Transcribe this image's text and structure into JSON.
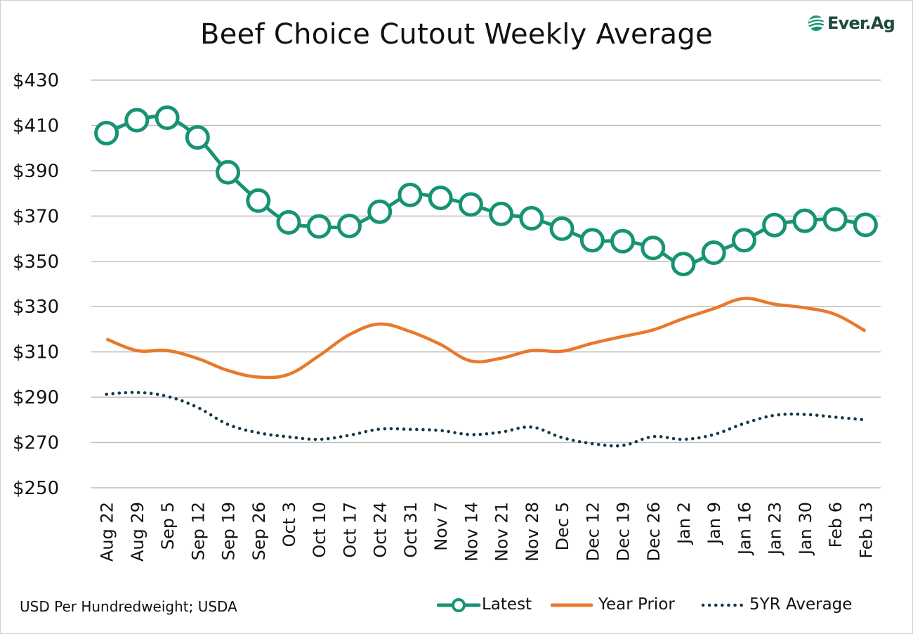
{
  "brand": {
    "logo_text": "Ever.Ag"
  },
  "source_note": "USD Per Hundredweight; USDA",
  "colors": {
    "latest": "#179373",
    "year_prior": "#e8792c",
    "five_yr": "#163748",
    "grid": "#bfbfbf"
  },
  "chart_data": {
    "type": "line",
    "title": "Beef Choice Cutout Weekly Average",
    "xlabel": "",
    "ylabel": "",
    "ylim": [
      250,
      430
    ],
    "ytick_step": 20,
    "ytick_labels": [
      "$250",
      "$270",
      "$290",
      "$310",
      "$330",
      "$350",
      "$370",
      "$390",
      "$410",
      "$430"
    ],
    "categories": [
      "Aug 22",
      "Aug 29",
      "Sep 5",
      "Sep 12",
      "Sep 19",
      "Sep 26",
      "Oct 3",
      "Oct 10",
      "Oct 17",
      "Oct 24",
      "Oct 31",
      "Nov 7",
      "Nov 14",
      "Nov 21",
      "Nov 28",
      "Dec 5",
      "Dec 12",
      "Dec 19",
      "Dec 26",
      "Jan 2",
      "Jan 9",
      "Jan 16",
      "Jan 23",
      "Jan 30",
      "Feb 6",
      "Feb 13"
    ],
    "grid": true,
    "legend_position": "bottom",
    "series": [
      {
        "name": "Latest",
        "style": "line-markers",
        "values": [
          406.6,
          412.3,
          413.4,
          404.7,
          389.3,
          376.8,
          367.2,
          365.4,
          365.6,
          371.9,
          379.3,
          378.0,
          375.1,
          370.9,
          369.0,
          364.4,
          359.3,
          358.9,
          355.9,
          348.8,
          353.8,
          359.3,
          366.0,
          367.9,
          368.5,
          366.1
        ]
      },
      {
        "name": "Year Prior",
        "style": "solid",
        "values": [
          315.7,
          310.6,
          310.6,
          307.1,
          301.8,
          298.9,
          300.1,
          308.3,
          317.6,
          322.3,
          319.0,
          313.3,
          306.0,
          307.2,
          310.6,
          310.3,
          313.8,
          316.8,
          319.7,
          324.7,
          329.1,
          333.6,
          331.1,
          329.5,
          326.6,
          319.2
        ]
      },
      {
        "name": "5YR Average",
        "style": "dotted",
        "values": [
          291.3,
          292.1,
          290.4,
          285.5,
          278.0,
          274.3,
          272.5,
          271.4,
          273.2,
          275.9,
          275.8,
          275.3,
          273.5,
          274.6,
          276.8,
          272.2,
          269.5,
          268.7,
          272.6,
          271.4,
          273.5,
          278.4,
          282.0,
          282.4,
          281.2,
          280.0
        ]
      }
    ]
  }
}
